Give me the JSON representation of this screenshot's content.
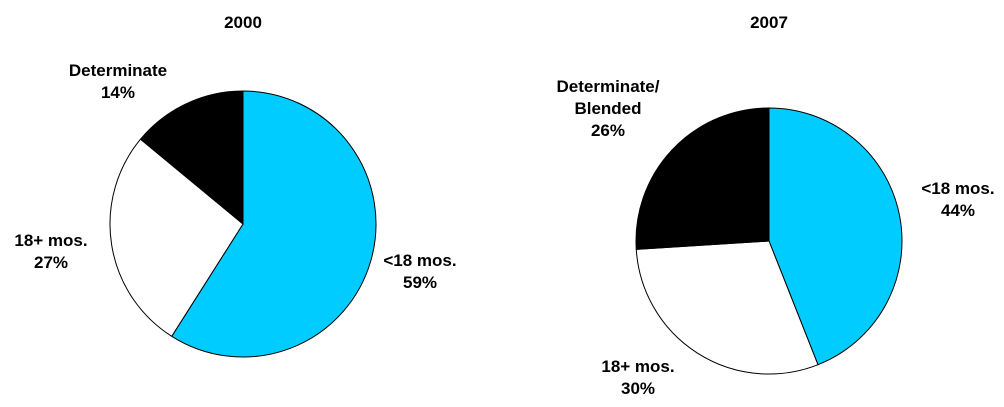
{
  "chart_data": [
    {
      "type": "pie",
      "title": "2000",
      "slices": [
        {
          "label": "<18 mos.",
          "value": 59,
          "display": "59%",
          "color": "#00CCFF"
        },
        {
          "label": "18+ mos.",
          "value": 27,
          "display": "27%",
          "color": "#FFFFFF"
        },
        {
          "label": "Determinate",
          "value": 14,
          "display": "14%",
          "color": "#000000"
        }
      ],
      "start": "12 o'clock",
      "direction": "clockwise",
      "legend": "none (direct labels)"
    },
    {
      "type": "pie",
      "title": "2007",
      "slices": [
        {
          "label": "<18 mos.",
          "value": 44,
          "display": "44%",
          "color": "#00CCFF"
        },
        {
          "label": "18+ mos.",
          "value": 30,
          "display": "30%",
          "color": "#FFFFFF"
        },
        {
          "label": "Determinate/ Blended",
          "label_lines": [
            "Determinate/",
            "Blended"
          ],
          "value": 26,
          "display": "26%",
          "color": "#000000"
        }
      ],
      "start": "12 o'clock",
      "direction": "clockwise",
      "legend": "none (direct labels)"
    }
  ],
  "colors": {
    "stroke": "#000000"
  }
}
